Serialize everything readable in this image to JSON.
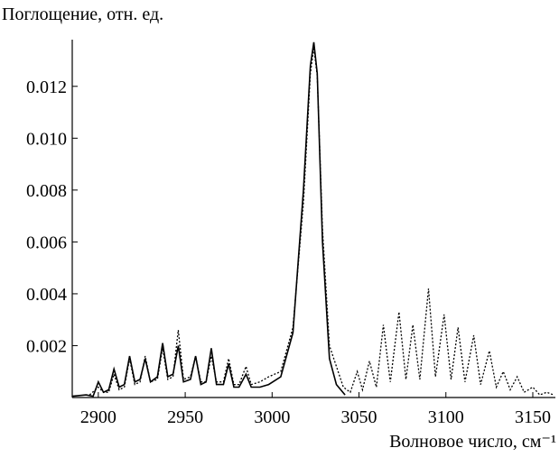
{
  "chart_data": {
    "type": "line",
    "ylabel": "Поглощение, отн. ед.",
    "xlabel": "Волновое число, см⁻¹",
    "xlim": [
      2885,
      3163
    ],
    "xticks": [
      2900,
      2950,
      3000,
      3050,
      3100,
      3150
    ],
    "ylim": [
      0,
      0.0138
    ],
    "yticks": [
      {
        "value": 0.002,
        "label": "0.002"
      },
      {
        "value": 0.004,
        "label": "0.004"
      },
      {
        "value": 0.006,
        "label": "0.006"
      },
      {
        "value": 0.008,
        "label": "0.008"
      },
      {
        "value": 0.01,
        "label": "0.010"
      },
      {
        "value": 0.012,
        "label": "0.012"
      }
    ],
    "series": [
      {
        "color": "#000000",
        "dash": "solid",
        "x": [
          2885,
          2893,
          2897,
          2900,
          2903,
          2906,
          2909,
          2912,
          2915,
          2918,
          2921,
          2924,
          2927,
          2930,
          2934,
          2937,
          2940,
          2943,
          2946,
          2949,
          2953,
          2956,
          2959,
          2962,
          2965,
          2968,
          2972,
          2975,
          2978,
          2981,
          2985,
          2988,
          2993,
          2998,
          3005,
          3012,
          3018,
          3022,
          3024,
          3026,
          3029,
          3033,
          3037,
          3042
        ],
        "values": [
          5e-05,
          0.0001,
          5e-05,
          0.0006,
          0.0002,
          0.0003,
          0.0011,
          0.0004,
          0.0005,
          0.0016,
          0.0006,
          0.0007,
          0.0015,
          0.0006,
          0.0008,
          0.0021,
          0.0008,
          0.0009,
          0.002,
          0.0006,
          0.0007,
          0.0016,
          0.0005,
          0.0006,
          0.0019,
          0.0005,
          0.0005,
          0.0013,
          0.0004,
          0.0004,
          0.0009,
          0.0004,
          0.0004,
          0.0005,
          0.0008,
          0.0025,
          0.008,
          0.0128,
          0.0137,
          0.0125,
          0.006,
          0.0015,
          0.0005,
          0.0001
        ]
      },
      {
        "color": "#000000",
        "dash": "dotted",
        "x": [
          2895,
          2900,
          2903,
          2906,
          2909,
          2912,
          2915,
          2918,
          2921,
          2924,
          2927,
          2930,
          2934,
          2937,
          2940,
          2943,
          2946,
          2949,
          2953,
          2956,
          2959,
          2962,
          2965,
          2968,
          2972,
          2975,
          2978,
          2981,
          2985,
          2988,
          2993,
          2998,
          3005,
          3012,
          3018,
          3022,
          3024,
          3026,
          3029,
          3033,
          3037,
          3041,
          3045,
          3049,
          3052,
          3056,
          3060,
          3064,
          3068,
          3073,
          3077,
          3081,
          3085,
          3090,
          3094,
          3099,
          3103,
          3107,
          3111,
          3116,
          3120,
          3125,
          3129,
          3133,
          3137,
          3141,
          3145,
          3150,
          3154,
          3158,
          3162
        ],
        "values": [
          0.0001,
          0.0004,
          0.0002,
          0.0002,
          0.0009,
          0.0003,
          0.0004,
          0.0015,
          0.0005,
          0.0006,
          0.0016,
          0.0006,
          0.0007,
          0.0019,
          0.0007,
          0.0008,
          0.0026,
          0.0007,
          0.0008,
          0.0016,
          0.0006,
          0.0006,
          0.0016,
          0.0006,
          0.0006,
          0.0015,
          0.0005,
          0.0005,
          0.0012,
          0.0005,
          0.0006,
          0.0008,
          0.001,
          0.0027,
          0.0075,
          0.0125,
          0.0135,
          0.0124,
          0.0065,
          0.002,
          0.0012,
          0.0004,
          0.0002,
          0.001,
          0.0003,
          0.0014,
          0.0004,
          0.0028,
          0.0006,
          0.0033,
          0.0007,
          0.0028,
          0.0007,
          0.0042,
          0.0008,
          0.0032,
          0.0007,
          0.0027,
          0.0006,
          0.0024,
          0.0005,
          0.0018,
          0.0004,
          0.001,
          0.0003,
          0.0008,
          0.0002,
          0.0004,
          0.0001,
          0.0002,
          0.0001
        ]
      }
    ]
  }
}
